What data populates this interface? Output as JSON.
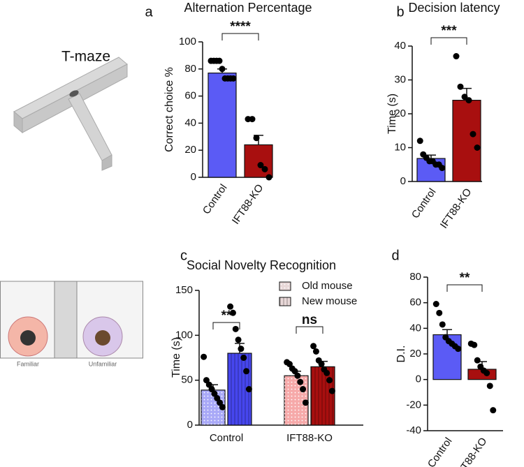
{
  "illustrations": {
    "t_maze_label": "T-maze",
    "familiar": "Familiar",
    "unfamiliar": "Unfamiliar"
  },
  "chart_data": [
    {
      "type": "bar",
      "panel_label": "a",
      "title": "Alternation Percentage",
      "ylabel": "Correct choice %",
      "categories": [
        "Control",
        "IFT88-KO"
      ],
      "values": [
        77,
        24
      ],
      "errors": [
        3,
        7
      ],
      "points": [
        [
          86,
          86,
          86,
          86,
          80,
          73,
          73,
          73,
          73
        ],
        [
          43,
          43,
          29,
          9,
          6,
          0
        ]
      ],
      "colors": [
        "#5b5bf5",
        "#a80f0f"
      ],
      "ylim": [
        0,
        100
      ],
      "yticks": [
        0,
        20,
        40,
        60,
        80,
        100
      ],
      "significance": [
        "****"
      ]
    },
    {
      "type": "bar",
      "panel_label": "b",
      "title": "Decision latency",
      "ylabel": "Time (s)",
      "categories": [
        "Control",
        "IFT88-KO"
      ],
      "values": [
        6.8,
        24
      ],
      "errors": [
        1,
        3.5
      ],
      "points": [
        [
          12,
          8,
          7,
          6,
          6,
          5,
          5,
          4
        ],
        [
          37,
          28,
          25,
          24,
          14,
          10
        ]
      ],
      "colors": [
        "#5b5bf5",
        "#a80f0f"
      ],
      "ylim": [
        0,
        40
      ],
      "yticks": [
        0,
        10,
        20,
        30,
        40
      ],
      "significance": [
        "***"
      ]
    },
    {
      "type": "grouped_bar",
      "panel_label": "c",
      "title": "Social Novelty Recognition",
      "ylabel": "Time (s)",
      "categories": [
        "Control",
        "IFT88-KO"
      ],
      "series": [
        {
          "name": "Old mouse",
          "pattern": "dots",
          "colors": [
            "#a9a9f7",
            "#f6a9a9"
          ],
          "values": [
            39,
            55
          ],
          "errors": [
            6,
            5
          ],
          "points": [
            [
              76,
              50,
              45,
              40,
              35,
              30,
              25,
              20
            ],
            [
              70,
              68,
              63,
              60,
              55,
              48,
              40,
              25
            ]
          ]
        },
        {
          "name": "New mouse",
          "pattern": "stripes",
          "colors": [
            "#4646ee",
            "#a80f0f"
          ],
          "values": [
            80,
            65
          ],
          "errors": [
            11,
            6
          ],
          "points": [
            [
              132,
              125,
              107,
              95,
              85,
              75,
              60,
              40
            ],
            [
              88,
              82,
              72,
              68,
              62,
              58,
              50,
              38
            ]
          ]
        }
      ],
      "ylim": [
        0,
        150
      ],
      "yticks": [
        0,
        50,
        100,
        150
      ],
      "significance": [
        "**",
        "ns"
      ]
    },
    {
      "type": "bar",
      "panel_label": "d",
      "ylabel": "D.I.",
      "categories": [
        "Control",
        "IFT88-KO"
      ],
      "values": [
        35,
        8
      ],
      "errors": [
        4,
        6
      ],
      "points": [
        [
          59,
          52,
          43,
          33,
          30,
          28,
          26,
          24
        ],
        [
          28,
          27,
          15,
          10,
          7,
          5,
          -5,
          -24
        ]
      ],
      "colors": [
        "#5b5bf5",
        "#a80f0f"
      ],
      "ylim": [
        -40,
        80
      ],
      "yticks": [
        -40,
        -20,
        0,
        20,
        40,
        60,
        80
      ],
      "significance": [
        "**"
      ]
    }
  ]
}
